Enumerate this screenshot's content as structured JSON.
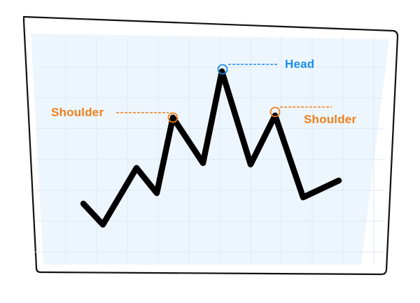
{
  "colors": {
    "frame_stroke": "#111111",
    "panel_fill": "#eef6fd",
    "grid": "#dbe9f5",
    "line": "#000000",
    "head_accent": "#1a8cf0",
    "shoulder_accent": "#f07f1a"
  },
  "labels": {
    "head": "Head",
    "left_shoulder": "Shoulder",
    "right_shoulder": "Shoulder"
  },
  "pattern": {
    "name": "head-and-shoulders",
    "points": [
      {
        "role": "start"
      },
      {
        "role": "trough"
      },
      {
        "role": "peak"
      },
      {
        "role": "trough"
      },
      {
        "role": "left-shoulder"
      },
      {
        "role": "neckline-trough"
      },
      {
        "role": "head"
      },
      {
        "role": "neckline-trough"
      },
      {
        "role": "right-shoulder"
      },
      {
        "role": "trough"
      },
      {
        "role": "end"
      }
    ]
  }
}
